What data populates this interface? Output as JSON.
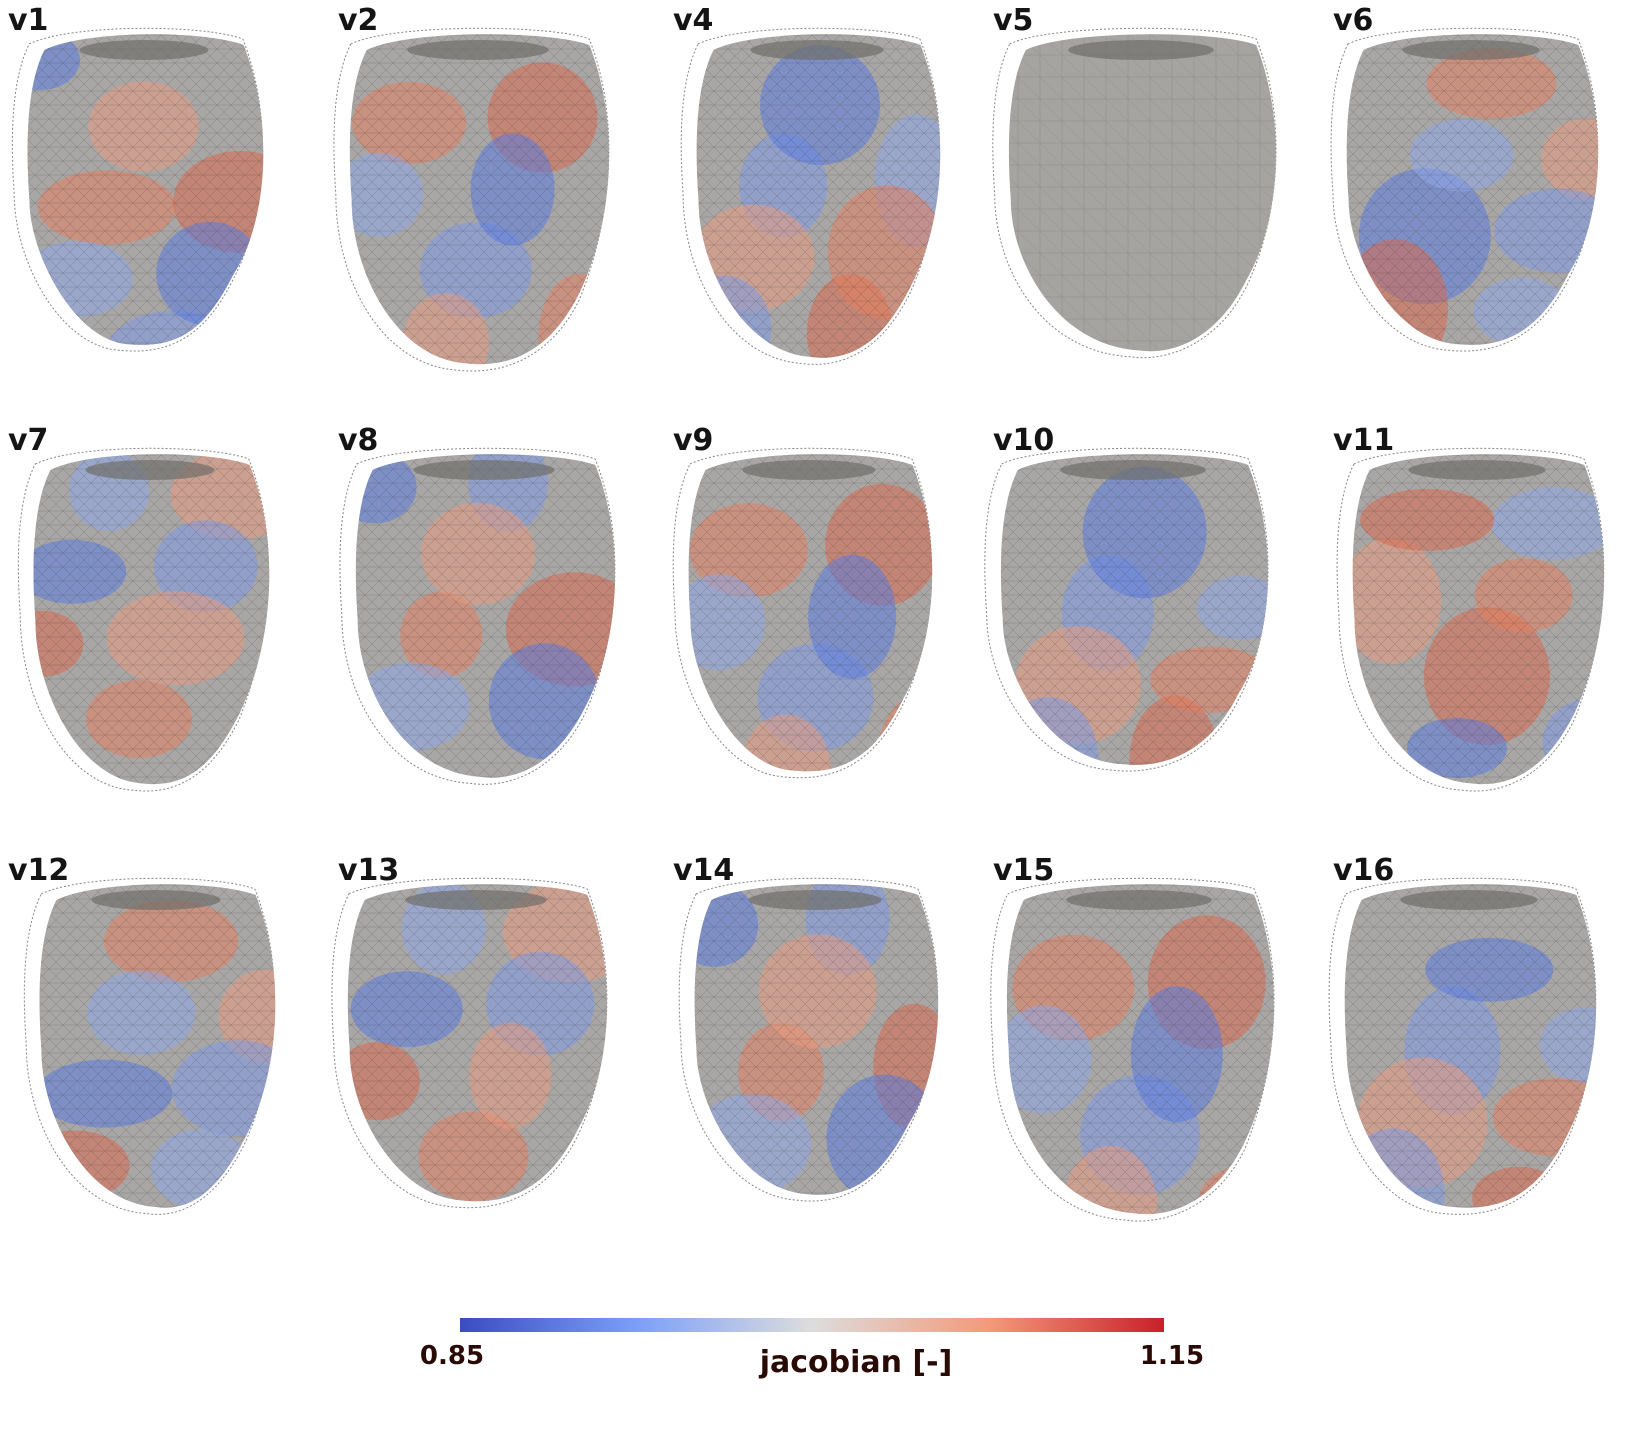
{
  "panels": [
    {
      "label": "v1"
    },
    {
      "label": "v2"
    },
    {
      "label": "v4"
    },
    {
      "label": "v5"
    },
    {
      "label": "v6"
    },
    {
      "label": "v7"
    },
    {
      "label": "v8"
    },
    {
      "label": "v9"
    },
    {
      "label": "v10"
    },
    {
      "label": "v11"
    },
    {
      "label": "v12"
    },
    {
      "label": "v13"
    },
    {
      "label": "v14"
    },
    {
      "label": "v15"
    },
    {
      "label": "v16"
    }
  ],
  "colorbar": {
    "title": "jacobian [-]",
    "min_label": "0.85",
    "max_label": "1.15",
    "min": 0.85,
    "max": 1.15,
    "colors": {
      "low": "#3b4cc0",
      "mid": "#dddddd",
      "high": "#c8202a"
    }
  },
  "colors": {
    "mesh_surface": "#9c9a96",
    "wireframe": "#222222",
    "text": "#141414"
  }
}
